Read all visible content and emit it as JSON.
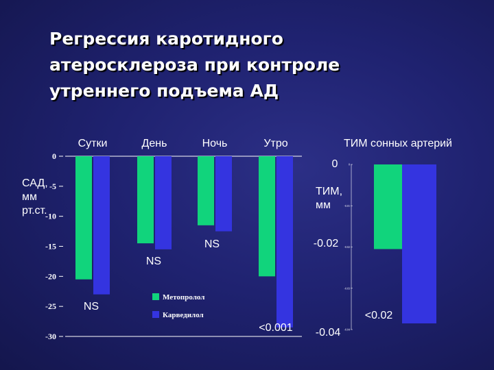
{
  "title": "Регрессия каротидного\nатеросклероза при контроле\nутреннего подъема АД",
  "colors": {
    "metoprolol": "#11d47c",
    "carvedilol": "#3434e0",
    "background": "#1f2270"
  },
  "chart_data": [
    {
      "type": "bar",
      "categories": [
        "Сутки",
        "День",
        "Ночь",
        "Утро"
      ],
      "series": [
        {
          "name": "Метопролол",
          "values": [
            -20.5,
            -14.5,
            -11.5,
            -20
          ]
        },
        {
          "name": "Карведилол",
          "values": [
            -23,
            -15.5,
            -12.5,
            -28.5
          ]
        }
      ],
      "ylabel": "САД,\nмм\nрт.ст.",
      "ylim": [
        -30,
        0
      ],
      "yticks": [
        "0",
        "-5",
        "-10",
        "-15",
        "-20",
        "-25",
        "-30"
      ],
      "legend": [
        "Метопролол",
        "Карведилол"
      ],
      "annotations": [
        "NS",
        "NS",
        "NS",
        "<0.001"
      ]
    },
    {
      "type": "bar",
      "title": "ТИМ сонных артерий",
      "categories": [
        ""
      ],
      "series": [
        {
          "name": "Метопролол",
          "values": [
            -0.0205
          ]
        },
        {
          "name": "Карведилол",
          "values": [
            -0.0385
          ]
        }
      ],
      "ylabel": "ТИМ,\nмм",
      "ylim": [
        -0.04,
        0
      ],
      "yticks": [
        "0",
        "-0.01",
        "-0.02",
        "-0.03",
        "-0.04"
      ],
      "big_tick_labels": [
        "0",
        "-0.02",
        "-0.04"
      ],
      "annotations": [
        "<0.02"
      ]
    }
  ]
}
